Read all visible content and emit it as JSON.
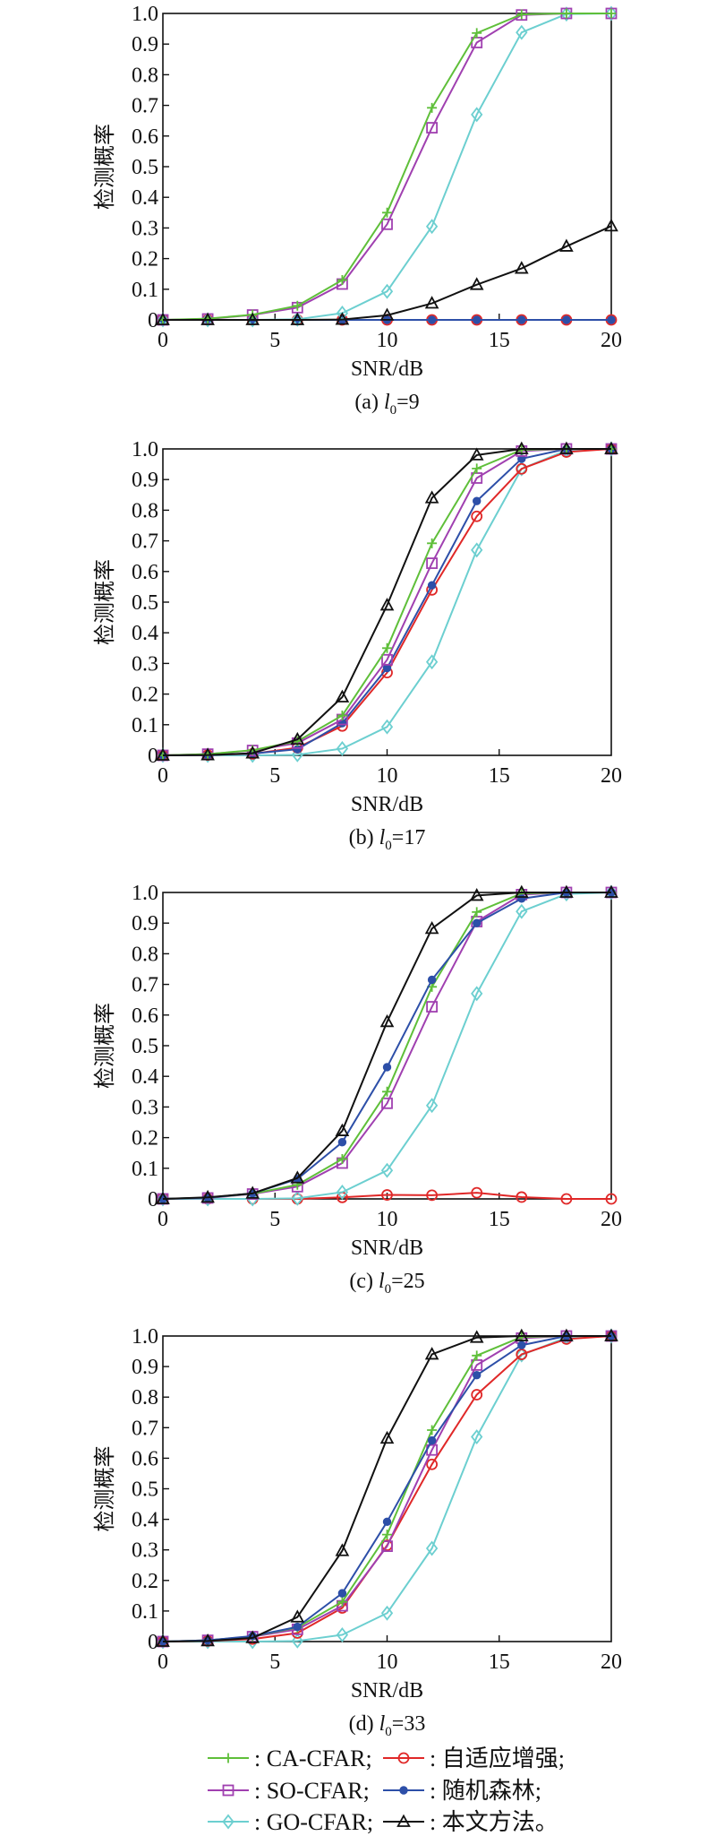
{
  "legend": [
    {
      "key": "ca",
      "label": ": CA-CFAR;",
      "color": "#5fbf3a",
      "marker": "plus"
    },
    {
      "key": "ad",
      "label": ": 自适应增强;",
      "color": "#e02828",
      "marker": "circle"
    },
    {
      "key": "so",
      "label": ": SO-CFAR;",
      "color": "#a040b0",
      "marker": "square"
    },
    {
      "key": "rf",
      "label": ": 随机森林;",
      "color": "#2d4fa8",
      "marker": "star"
    },
    {
      "key": "go",
      "label": ": GO-CFAR;",
      "color": "#6ccfd0",
      "marker": "diamond"
    },
    {
      "key": "ours",
      "label": ": 本文方法。",
      "color": "#111111",
      "marker": "triangle"
    }
  ],
  "chart_data": [
    {
      "type": "line",
      "caption_prefix": "(a) ",
      "caption_var": "l",
      "caption_sub": "0",
      "caption_suffix": "=9",
      "xlabel": "SNR/dB",
      "ylabel": "检测概率",
      "xlim": [
        0,
        20
      ],
      "ylim": [
        0,
        1
      ],
      "xticks": [
        "0",
        "5",
        "10",
        "15",
        "20"
      ],
      "yticks": [
        "0",
        "0.1",
        "0.2",
        "0.3",
        "0.4",
        "0.5",
        "0.6",
        "0.7",
        "0.8",
        "0.9",
        "1.0"
      ],
      "x": [
        0,
        2,
        4,
        6,
        8,
        10,
        12,
        14,
        16,
        18,
        20
      ],
      "series": [
        {
          "key": "ad",
          "name": "自适应增强",
          "values": [
            0,
            0,
            0,
            0,
            0,
            0,
            0,
            0,
            0,
            0,
            0
          ]
        },
        {
          "key": "rf",
          "name": "随机森林",
          "values": [
            0,
            0,
            0,
            0,
            0,
            0,
            0,
            0,
            0,
            0,
            0
          ]
        },
        {
          "key": "go",
          "name": "GO-CFAR",
          "values": [
            0,
            0,
            0,
            0.002,
            0.022,
            0.093,
            0.305,
            0.67,
            0.938,
            0.998,
            1.0
          ]
        },
        {
          "key": "so",
          "name": "SO-CFAR",
          "values": [
            0,
            0.003,
            0.016,
            0.04,
            0.117,
            0.312,
            0.627,
            0.905,
            0.995,
            1.0,
            1.0
          ]
        },
        {
          "key": "ca",
          "name": "CA-CFAR",
          "values": [
            0,
            0.004,
            0.017,
            0.046,
            0.13,
            0.35,
            0.692,
            0.936,
            0.997,
            1.0,
            1.0
          ]
        },
        {
          "key": "ours",
          "name": "本文方法",
          "values": [
            0,
            0,
            0,
            0,
            0.001,
            0.015,
            0.054,
            0.115,
            0.168,
            0.24,
            0.306
          ]
        }
      ]
    },
    {
      "type": "line",
      "caption_prefix": "(b) ",
      "caption_var": "l",
      "caption_sub": "0",
      "caption_suffix": "=17",
      "xlabel": "SNR/dB",
      "ylabel": "检测概率",
      "xlim": [
        0,
        20
      ],
      "ylim": [
        0,
        1
      ],
      "xticks": [
        "0",
        "5",
        "10",
        "15",
        "20"
      ],
      "yticks": [
        "0",
        "0.1",
        "0.2",
        "0.3",
        "0.4",
        "0.5",
        "0.6",
        "0.7",
        "0.8",
        "0.9",
        "1.0"
      ],
      "x": [
        0,
        2,
        4,
        6,
        8,
        10,
        12,
        14,
        16,
        18,
        20
      ],
      "series": [
        {
          "key": "go",
          "name": "GO-CFAR",
          "values": [
            0,
            0,
            0,
            0.002,
            0.022,
            0.093,
            0.305,
            0.67,
            0.935,
            0.995,
            1.0
          ]
        },
        {
          "key": "ad",
          "name": "自适应增强",
          "values": [
            0,
            0.001,
            0.005,
            0.025,
            0.096,
            0.27,
            0.54,
            0.78,
            0.935,
            0.99,
            1.0
          ]
        },
        {
          "key": "rf",
          "name": "随机森林",
          "values": [
            0,
            0.001,
            0.006,
            0.02,
            0.105,
            0.285,
            0.555,
            0.83,
            0.968,
            1.0,
            1.0
          ]
        },
        {
          "key": "so",
          "name": "SO-CFAR",
          "values": [
            0,
            0.004,
            0.016,
            0.04,
            0.117,
            0.312,
            0.627,
            0.905,
            0.993,
            1.0,
            1.0
          ]
        },
        {
          "key": "ca",
          "name": "CA-CFAR",
          "values": [
            0,
            0.004,
            0.017,
            0.046,
            0.13,
            0.35,
            0.692,
            0.936,
            0.997,
            1.0,
            1.0
          ]
        },
        {
          "key": "ours",
          "name": "本文方法",
          "values": [
            0,
            0.001,
            0.007,
            0.052,
            0.19,
            0.49,
            0.84,
            0.98,
            1.0,
            1.0,
            1.0
          ]
        }
      ]
    },
    {
      "type": "line",
      "caption_prefix": "(c) ",
      "caption_var": "l",
      "caption_sub": "0",
      "caption_suffix": "=25",
      "xlabel": "SNR/dB",
      "ylabel": "检测概率",
      "xlim": [
        0,
        20
      ],
      "ylim": [
        0,
        1
      ],
      "xticks": [
        "0",
        "5",
        "10",
        "15",
        "20"
      ],
      "yticks": [
        "0",
        "0.1",
        "0.2",
        "0.3",
        "0.4",
        "0.5",
        "0.6",
        "0.7",
        "0.8",
        "0.9",
        "1.0"
      ],
      "x": [
        0,
        2,
        4,
        6,
        8,
        10,
        12,
        14,
        16,
        18,
        20
      ],
      "series": [
        {
          "key": "ad",
          "name": "自适应增强",
          "values": [
            0,
            0,
            0,
            0,
            0.005,
            0.013,
            0.012,
            0.02,
            0.006,
            0,
            0
          ]
        },
        {
          "key": "go",
          "name": "GO-CFAR",
          "values": [
            0,
            0,
            0,
            0.002,
            0.022,
            0.093,
            0.305,
            0.67,
            0.938,
            0.995,
            1.0
          ]
        },
        {
          "key": "so",
          "name": "SO-CFAR",
          "values": [
            0,
            0.003,
            0.016,
            0.04,
            0.117,
            0.312,
            0.627,
            0.905,
            0.993,
            1.0,
            1.0
          ]
        },
        {
          "key": "ca",
          "name": "CA-CFAR",
          "values": [
            0,
            0.004,
            0.017,
            0.046,
            0.13,
            0.35,
            0.692,
            0.936,
            0.997,
            1.0,
            1.0
          ]
        },
        {
          "key": "rf",
          "name": "随机森林",
          "values": [
            0,
            0.004,
            0.018,
            0.065,
            0.185,
            0.43,
            0.715,
            0.9,
            0.98,
            1.0,
            1.0
          ]
        },
        {
          "key": "ours",
          "name": "本文方法",
          "values": [
            0,
            0.005,
            0.018,
            0.068,
            0.222,
            0.578,
            0.882,
            0.99,
            1.0,
            1.0,
            1.0
          ]
        }
      ]
    },
    {
      "type": "line",
      "caption_prefix": "(d) ",
      "caption_var": "l",
      "caption_sub": "0",
      "caption_suffix": "=33",
      "xlabel": "SNR/dB",
      "ylabel": "检测概率",
      "xlim": [
        0,
        20
      ],
      "ylim": [
        0,
        1
      ],
      "xticks": [
        "0",
        "5",
        "10",
        "15",
        "20"
      ],
      "yticks": [
        "0",
        "0.1",
        "0.2",
        "0.3",
        "0.4",
        "0.5",
        "0.6",
        "0.7",
        "0.8",
        "0.9",
        "1.0"
      ],
      "x": [
        0,
        2,
        4,
        6,
        8,
        10,
        12,
        14,
        16,
        18,
        20
      ],
      "series": [
        {
          "key": "go",
          "name": "GO-CFAR",
          "values": [
            0,
            0,
            0,
            0.002,
            0.022,
            0.093,
            0.305,
            0.67,
            0.938,
            0.995,
            1.0
          ]
        },
        {
          "key": "ad",
          "name": "自适应增强",
          "values": [
            0,
            0.002,
            0.008,
            0.028,
            0.11,
            0.315,
            0.58,
            0.808,
            0.94,
            0.99,
            1.0
          ]
        },
        {
          "key": "so",
          "name": "SO-CFAR",
          "values": [
            0,
            0.004,
            0.016,
            0.04,
            0.117,
            0.312,
            0.627,
            0.905,
            0.993,
            1.0,
            1.0
          ]
        },
        {
          "key": "ca",
          "name": "CA-CFAR",
          "values": [
            0,
            0.004,
            0.017,
            0.046,
            0.13,
            0.35,
            0.692,
            0.936,
            0.997,
            1.0,
            1.0
          ]
        },
        {
          "key": "rf",
          "name": "随机森林",
          "values": [
            0,
            0.004,
            0.018,
            0.048,
            0.158,
            0.392,
            0.658,
            0.872,
            0.97,
            1.0,
            1.0
          ]
        },
        {
          "key": "ours",
          "name": "本文方法",
          "values": [
            0,
            0.002,
            0.012,
            0.08,
            0.297,
            0.665,
            0.94,
            0.995,
            1.0,
            1.0,
            1.0
          ]
        }
      ]
    }
  ]
}
